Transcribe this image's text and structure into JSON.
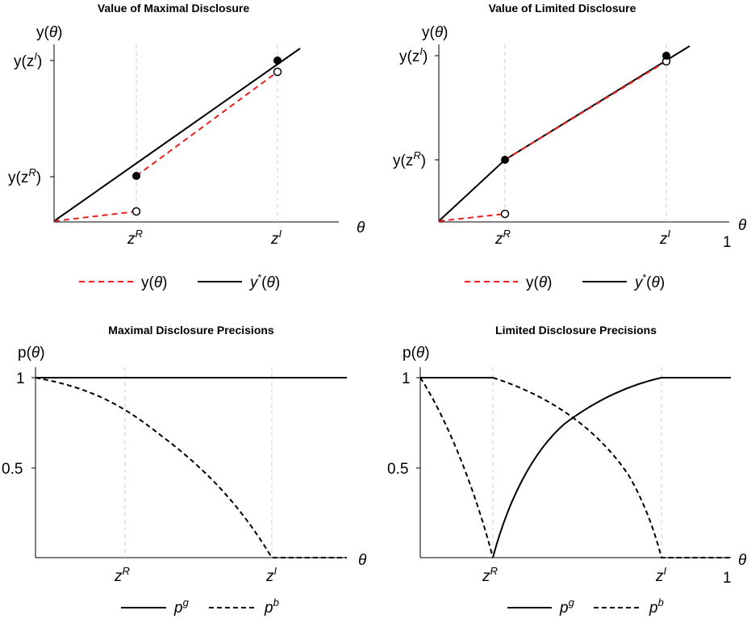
{
  "chart_data": [
    {
      "type": "line",
      "title": "Value of Maximal Disclosure",
      "ylabel": "y(θ)",
      "xlabel": "θ",
      "x_ticks": [
        "zR",
        "zI"
      ],
      "y_ticks": [
        "y(zR)",
        "y(zI)"
      ],
      "series": [
        {
          "name": "y(θ)",
          "style": "dashed",
          "color": "#e8201f",
          "segments": [
            [
              [
                0,
                0.22
              ],
              [
                0.36,
                0.24
              ]
            ],
            [
              [
                0.36,
                0.5
              ],
              [
                1.0,
                0.84
              ]
            ]
          ],
          "open_points": [
            [
              0.36,
              0.24
            ],
            [
              1.0,
              0.84
            ]
          ],
          "closed_points": [
            [
              0.36,
              0.5
            ]
          ]
        },
        {
          "name": "y*(θ)",
          "style": "solid",
          "color": "#000000",
          "segments": [
            [
              [
                0,
                0.22
              ],
              [
                1.0,
                0.96
              ]
            ]
          ],
          "closed_points": [
            [
              1.0,
              0.96
            ]
          ]
        }
      ],
      "legend": "bottom"
    },
    {
      "type": "line",
      "title": "Value of Limited Disclosure",
      "ylabel": "y(θ)",
      "xlabel": "θ",
      "x_ticks": [
        "zR",
        "zI",
        "1"
      ],
      "y_ticks": [
        "y(zR)",
        "y(zI)"
      ],
      "series": [
        {
          "name": "y(θ)",
          "style": "dashed",
          "color": "#e8201f",
          "segments": [
            [
              [
                0,
                0.22
              ],
              [
                0.29,
                0.24
              ]
            ],
            [
              [
                0.29,
                0.5
              ],
              [
                1.0,
                0.84
              ]
            ]
          ],
          "open_points": [
            [
              0.29,
              0.24
            ],
            [
              1.0,
              0.84
            ]
          ],
          "closed_points": [
            [
              0.29,
              0.5
            ]
          ]
        },
        {
          "name": "y*(θ)",
          "style": "solid",
          "color": "#000000",
          "segments": [
            [
              [
                0,
                0.22
              ],
              [
                0.29,
                0.5
              ],
              [
                1.0,
                0.96
              ]
            ]
          ],
          "closed_points": [
            [
              0.29,
              0.5
            ],
            [
              1.0,
              0.96
            ]
          ]
        }
      ],
      "legend": "bottom"
    },
    {
      "type": "line",
      "title": "Maximal Disclosure Precisions",
      "ylabel": "p(θ)",
      "xlabel": "θ",
      "x_ticks": [
        "zR",
        "zI"
      ],
      "y_ticks": [
        "0.5",
        "1"
      ],
      "series": [
        {
          "name": "pg",
          "style": "solid",
          "color": "#000000",
          "x": [
            0,
            1.0
          ],
          "y": [
            1,
            1
          ]
        },
        {
          "name": "pb",
          "style": "dashed",
          "color": "#000000",
          "x": [
            0,
            0.1,
            0.2,
            0.3,
            0.4,
            0.5,
            0.6,
            0.7,
            0.75,
            0.8,
            1.0
          ],
          "y": [
            1,
            0.9535,
            0.9017,
            0.8434,
            0.7769,
            0.6993,
            0.6052,
            0.4822,
            0.4004,
            0.2895,
            0
          ]
        }
      ],
      "legend": "bottom"
    },
    {
      "type": "line",
      "title": "Limited Disclosure Precisions",
      "ylabel": "p(θ)",
      "xlabel": "θ",
      "x_ticks": [
        "zR",
        "zI",
        "1"
      ],
      "y_ticks": [
        "0.5",
        "1"
      ],
      "series": [
        {
          "name": "pg",
          "style": "solid",
          "color": "#000000",
          "x": [
            0,
            0.22,
            0.25,
            0.3,
            0.35,
            0.4,
            0.5,
            0.6,
            0.65,
            0.7,
            0.75,
            0.9,
            1.0
          ],
          "y": [
            1,
            1,
            0.1,
            0.3,
            0.45,
            0.55,
            0.7,
            0.82,
            0.88,
            0.94,
            1,
            1,
            1
          ]
        },
        {
          "name": "pb",
          "style": "dashed",
          "color": "#000000",
          "x": [
            0,
            0.05,
            0.1,
            0.15,
            0.22,
            0.25,
            0.3,
            0.35,
            0.4,
            0.5,
            0.6,
            0.7,
            0.75,
            0.9,
            1.0
          ],
          "y": [
            1,
            0.75,
            0.5,
            0.25,
            0,
            1,
            0.96,
            0.92,
            0.87,
            0.77,
            0.62,
            0.4,
            0,
            0,
            0
          ]
        }
      ],
      "legend": "bottom"
    }
  ]
}
